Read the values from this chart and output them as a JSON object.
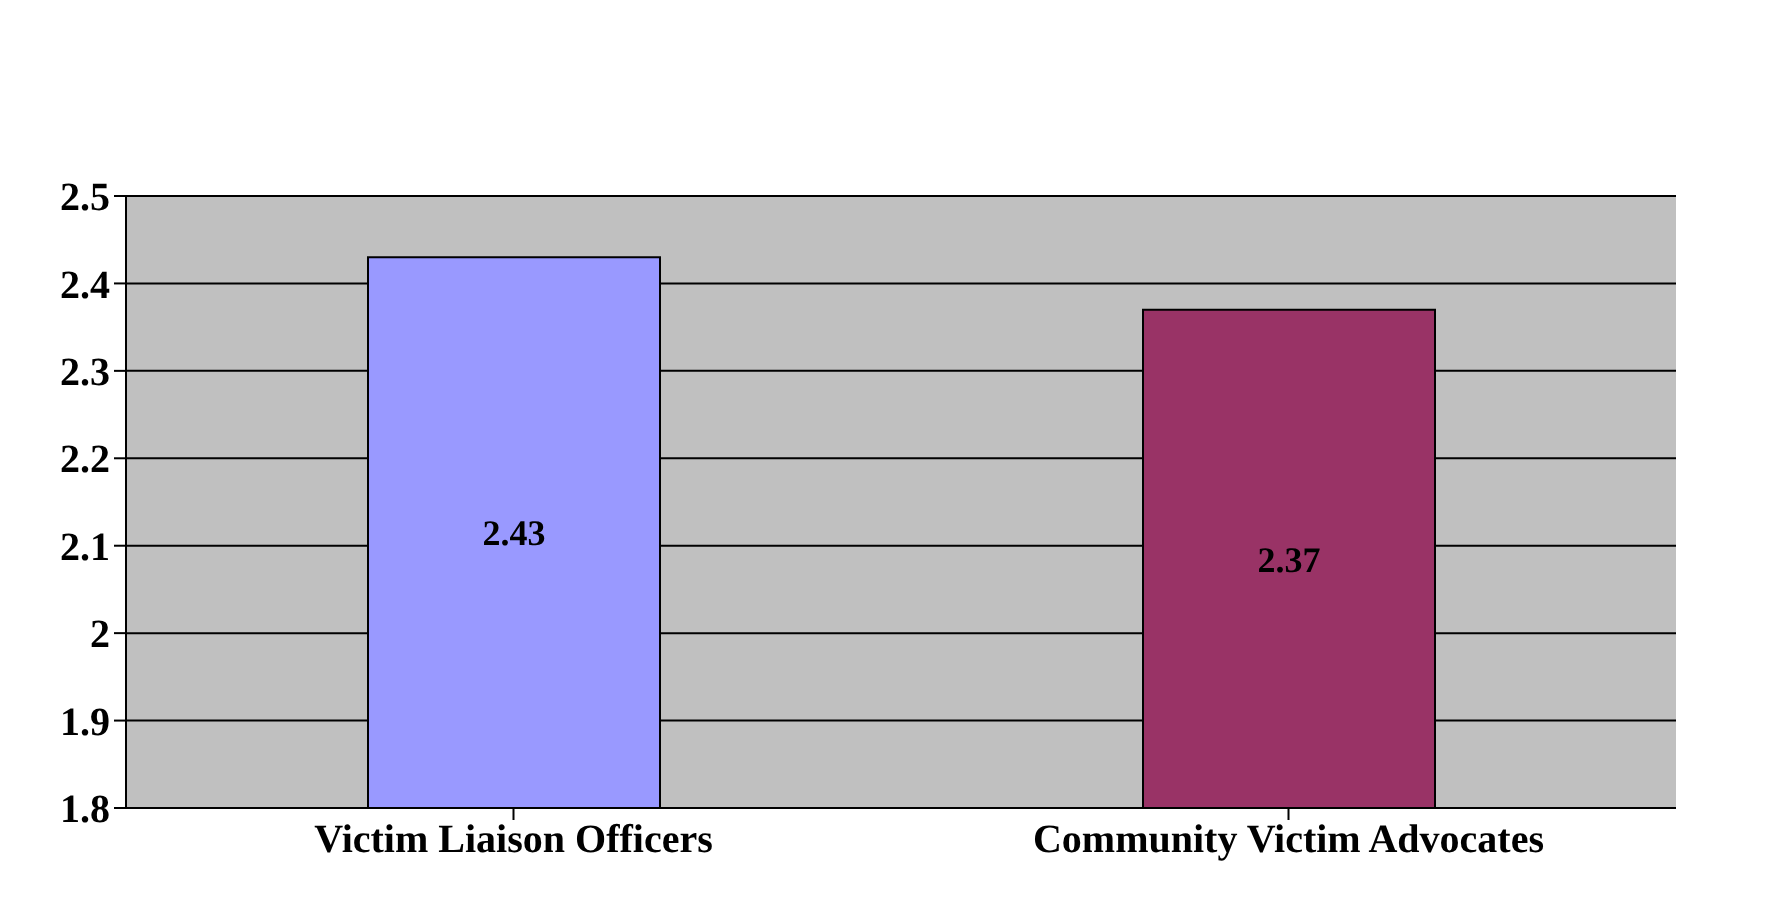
{
  "chart_data": {
    "type": "bar",
    "categories": [
      "Victim Liaison Officers",
      "Community Victim Advocates"
    ],
    "values": [
      2.43,
      2.37
    ],
    "colors": [
      "#9999ff",
      "#993366"
    ],
    "ylim": [
      1.8,
      2.5
    ],
    "yticks": [
      1.8,
      1.9,
      2,
      2.1,
      2.2,
      2.3,
      2.4,
      2.5
    ],
    "grid": "y",
    "data_labels": true
  }
}
